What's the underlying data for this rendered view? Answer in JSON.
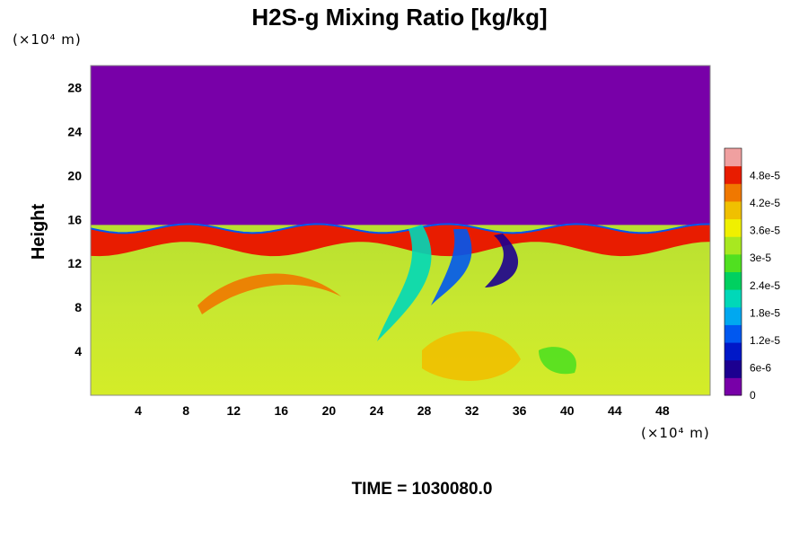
{
  "chart_data": {
    "type": "heatmap",
    "title": "H2S-g Mixing Ratio [kg/kg]",
    "ylabel": "Height",
    "x_unit": "(×10⁴ m)",
    "y_unit": "(×10⁴ m)",
    "footer": "TIME = 1030080.0",
    "xlim": [
      0,
      52
    ],
    "ylim": [
      0,
      30
    ],
    "x_ticks": [
      4,
      8,
      12,
      16,
      20,
      24,
      28,
      32,
      36,
      40,
      44,
      48
    ],
    "y_ticks": [
      4,
      8,
      12,
      16,
      20,
      24,
      28
    ],
    "colorbar": {
      "min": 0,
      "max": 5.4e-05,
      "ticks": [
        {
          "value": 0,
          "label": "0"
        },
        {
          "value": 6e-06,
          "label": "6e-6"
        },
        {
          "value": 1.2e-05,
          "label": "1.2e-5"
        },
        {
          "value": 1.8e-05,
          "label": "1.8e-5"
        },
        {
          "value": 2.4e-05,
          "label": "2.4e-5"
        },
        {
          "value": 3e-05,
          "label": "3e-5"
        },
        {
          "value": 3.6e-05,
          "label": "3.6e-5"
        },
        {
          "value": 4.2e-05,
          "label": "4.2e-5"
        },
        {
          "value": 4.8e-05,
          "label": "4.8e-5"
        }
      ],
      "colors": [
        "#7800a8",
        "#1c0090",
        "#0018c8",
        "#0058f0",
        "#00a8f0",
        "#00d8b8",
        "#00d060",
        "#50e020",
        "#a8e820",
        "#f0f000",
        "#f0c000",
        "#f07800",
        "#e81c00",
        "#f0a0a0"
      ]
    },
    "field_regions": {
      "upper_layer_value": 0,
      "lower_layer_mean_value": 3.3e-05,
      "boundary_height": 15.5,
      "high_band_value": 5e-05,
      "annotation": "upper layer near zero; lower layer 3e-5 to 3.6e-5"
    }
  }
}
